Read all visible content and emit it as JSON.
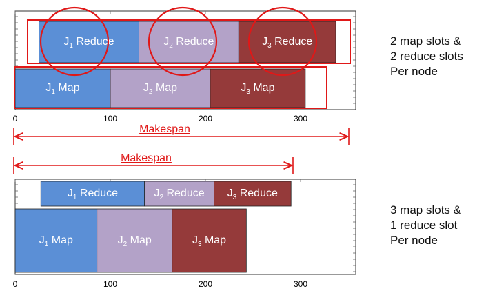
{
  "colors": {
    "j1": "#5b8fd6",
    "j2": "#b3a2c8",
    "j3": "#953a3a",
    "highlight": "#e01818",
    "makespan": "#e01818"
  },
  "top_panel": {
    "note": [
      "2 map slots &",
      "2 reduce slots",
      "Per node"
    ],
    "makespan_label": "Makespan",
    "ticks": [
      "0",
      "100",
      "200",
      "300"
    ],
    "reduce_tasks": [
      {
        "job": "J",
        "sub": "1",
        "suffix": " Reduce",
        "start": 25,
        "end": 130,
        "color": "j1"
      },
      {
        "job": "J",
        "sub": "2",
        "suffix": " Reduce",
        "start": 130,
        "end": 235,
        "color": "j2"
      },
      {
        "job": "J",
        "sub": "3",
        "suffix": " Reduce",
        "start": 235,
        "end": 337,
        "color": "j3"
      }
    ],
    "map_tasks": [
      {
        "job": "J",
        "sub": "1",
        "suffix": " Map",
        "start": 0,
        "end": 100,
        "color": "j1"
      },
      {
        "job": "J",
        "sub": "2",
        "suffix": " Map",
        "start": 100,
        "end": 205,
        "color": "j2"
      },
      {
        "job": "J",
        "sub": "3",
        "suffix": " Map",
        "start": 205,
        "end": 305,
        "color": "j3"
      }
    ]
  },
  "bottom_panel": {
    "note": [
      "3 map slots &",
      "1 reduce slot",
      "Per node"
    ],
    "makespan_label": "Makespan",
    "ticks": [
      "0",
      "100",
      "200",
      "300"
    ],
    "reduce_tasks": [
      {
        "job": "J",
        "sub": "1",
        "suffix": " Reduce",
        "start": 27,
        "end": 136,
        "color": "j1"
      },
      {
        "job": "J",
        "sub": "2",
        "suffix": " Reduce",
        "start": 136,
        "end": 209,
        "color": "j2"
      },
      {
        "job": "J",
        "sub": "3",
        "suffix": " Reduce",
        "start": 209,
        "end": 290,
        "color": "j3"
      }
    ],
    "map_tasks": [
      {
        "job": "J",
        "sub": "1",
        "suffix": " Map",
        "start": 0,
        "end": 86,
        "color": "j1"
      },
      {
        "job": "J",
        "sub": "2",
        "suffix": " Map",
        "start": 86,
        "end": 165,
        "color": "j2"
      },
      {
        "job": "J",
        "sub": "3",
        "suffix": " Map",
        "start": 165,
        "end": 243,
        "color": "j3"
      }
    ]
  }
}
